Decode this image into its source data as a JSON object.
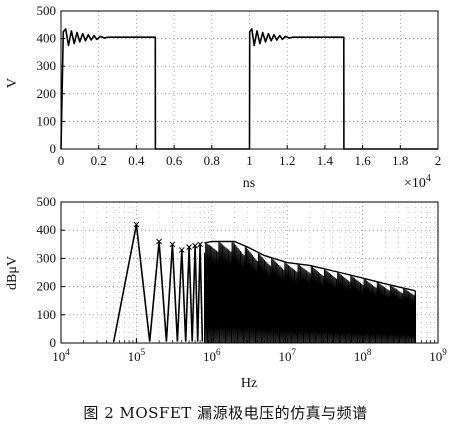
{
  "chart_data": [
    {
      "type": "line",
      "xlabel": "ns",
      "ylabel": "V",
      "x_multiplier_label": "×10",
      "x_multiplier_exp": "4",
      "xlim": [
        0,
        2
      ],
      "ylim": [
        0,
        500
      ],
      "x_ticks": [
        "0",
        "0.2",
        "0.4",
        "0.6",
        "0.8",
        "1",
        "1.2",
        "1.4",
        "1.6",
        "1.8",
        "2"
      ],
      "y_ticks": [
        "0",
        "100",
        "200",
        "300",
        "400",
        "500"
      ],
      "grid": true,
      "series": [
        {
          "x": [
            0,
            0.012,
            0.025,
            0.04,
            0.055,
            0.07,
            0.085,
            0.1,
            0.115,
            0.13,
            0.145,
            0.16,
            0.175,
            0.19,
            0.21,
            0.23,
            0.25,
            0.5,
            0.501,
            1.0,
            1.001,
            1.012,
            1.025,
            1.04,
            1.055,
            1.07,
            1.085,
            1.1,
            1.115,
            1.13,
            1.145,
            1.16,
            1.175,
            1.19,
            1.21,
            1.23,
            1.25,
            1.5,
            1.501,
            2.0
          ],
          "y": [
            0,
            425,
            435,
            375,
            428,
            382,
            422,
            388,
            418,
            392,
            414,
            395,
            411,
            397,
            408,
            402,
            405,
            405,
            0,
            0,
            425,
            435,
            375,
            428,
            382,
            422,
            388,
            418,
            392,
            414,
            395,
            411,
            397,
            408,
            402,
            405,
            405,
            405,
            0,
            0
          ]
        }
      ]
    },
    {
      "type": "line",
      "xlabel": "Hz",
      "ylabel": "dBμV",
      "x_scale": "log",
      "xlim": [
        10000,
        1000000000
      ],
      "ylim": [
        0,
        500
      ],
      "x_tick_base": "10",
      "x_tick_exps": [
        "4",
        "5",
        "6",
        "7",
        "8",
        "9"
      ],
      "y_ticks": [
        "0",
        "100",
        "200",
        "300",
        "400",
        "500"
      ],
      "grid": true,
      "series": [
        {
          "x": [
            50000,
            100000,
            150000,
            200000,
            250000,
            300000,
            350000,
            400000,
            450000,
            500000,
            550000,
            600000,
            650000,
            700000,
            750000
          ],
          "y": [
            5,
            420,
            5,
            360,
            5,
            350,
            5,
            330,
            5,
            340,
            5,
            345,
            5,
            350,
            5
          ]
        }
      ],
      "envelope": {
        "x": [
          800000,
          1000000,
          2000000,
          3000000,
          5000000,
          10000000,
          20000000,
          50000000,
          100000000,
          200000000,
          500000000
        ],
        "y": [
          355,
          360,
          360,
          340,
          310,
          285,
          275,
          250,
          230,
          210,
          185
        ]
      }
    }
  ],
  "caption": "图 2   MOSFET 漏源极电压的仿真与频谱"
}
